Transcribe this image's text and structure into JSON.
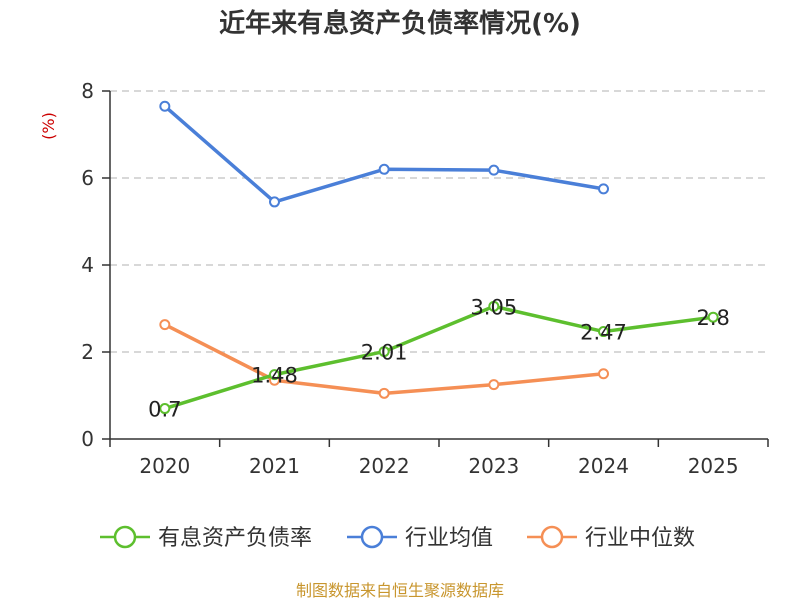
{
  "chart_data": {
    "type": "line",
    "title": "近年来有息资产负债率情况(%)",
    "ylabel": "(%)",
    "xlabel": "",
    "categories": [
      "2020",
      "2021",
      "2022",
      "2023",
      "2024",
      "2025"
    ],
    "ylim": [
      0,
      8
    ],
    "yticks": [
      0,
      2,
      4,
      6,
      8
    ],
    "grid": true,
    "legend_position": "bottom",
    "series": [
      {
        "name": "有息资产负债率",
        "color": "#5dbf2e",
        "show_labels": true,
        "values": [
          0.7,
          1.48,
          2.01,
          3.05,
          2.47,
          2.8
        ],
        "labels": [
          "0.7",
          "1.48",
          "2.01",
          "3.05",
          "2.47",
          "2.8"
        ]
      },
      {
        "name": "行业均值",
        "color": "#4a7fd8",
        "show_labels": false,
        "values": [
          7.65,
          5.45,
          6.2,
          6.18,
          5.75,
          null
        ]
      },
      {
        "name": "行业中位数",
        "color": "#f58f55",
        "show_labels": false,
        "values": [
          2.63,
          1.35,
          1.05,
          1.25,
          1.5,
          null
        ]
      }
    ]
  },
  "colors": {
    "unit_label": "#cc0000",
    "source": "#c8962e",
    "grid": "#cccccc",
    "axis": "#333333"
  },
  "source": "制图数据来自恒生聚源数据库"
}
